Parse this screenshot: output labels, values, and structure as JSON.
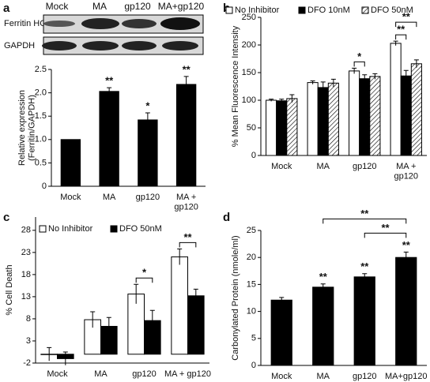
{
  "panels": [
    "a",
    "b",
    "c",
    "d"
  ],
  "blot": {
    "lanes": [
      "Mock",
      "MA",
      "gp120",
      "MA+gp120"
    ],
    "rows": [
      "Ferritin HC",
      "GAPDH"
    ]
  },
  "chart_data": [
    {
      "type": "bar",
      "ylabel": "Relative expression\n(Ferritin/GAPDH)",
      "categories": [
        "Mock",
        "MA",
        "gp120",
        "MA +\ngp120"
      ],
      "series": [
        {
          "color": "#000000",
          "values": [
            1.0,
            2.03,
            1.42,
            2.18
          ],
          "errors": [
            0,
            0.08,
            0.15,
            0.17
          ],
          "significance": [
            null,
            "**",
            "*",
            "**"
          ]
        }
      ],
      "ylim": [
        0,
        2.5
      ],
      "yticks": [
        0,
        0.5,
        {
          "value": 1,
          "label": "1.0"
        },
        1.5,
        {
          "value": 2,
          "label": "2.0"
        },
        2.5
      ]
    },
    {
      "type": "bar",
      "ylabel": "% Mean Fluorescence Intensity",
      "categories": [
        "Mock",
        "MA",
        "gp120",
        "MA +\ngp120"
      ],
      "series": [
        {
          "name": "No Inhibitor",
          "color": "#ffffff",
          "values": [
            100,
            132,
            153,
            203
          ],
          "errors": [
            2,
            3,
            5,
            4
          ]
        },
        {
          "name": "DFO 10nM",
          "color": "#000000",
          "values": [
            99,
            123,
            139,
            144
          ],
          "errors": [
            3,
            10,
            7,
            10
          ]
        },
        {
          "name": "DFO 50nM",
          "color": "#ffffff",
          "hatch": true,
          "values": [
            103,
            131,
            143,
            166
          ],
          "errors": [
            7,
            7,
            5,
            7
          ]
        }
      ],
      "comparisons": [
        {
          "label": "*",
          "category": 2,
          "series": [
            0,
            1
          ]
        },
        {
          "label": "**",
          "category": 3,
          "series": [
            0,
            1
          ]
        },
        {
          "label": "**",
          "category": 3,
          "series": [
            0,
            2
          ]
        }
      ],
      "ylim": [
        0,
        250
      ],
      "yticks": [
        0,
        50,
        100,
        150,
        200,
        250
      ]
    },
    {
      "type": "bar",
      "ylabel": "% Cell Death",
      "categories": [
        "Mock",
        "MA",
        "gp120",
        "MA + gp120"
      ],
      "series": [
        {
          "name": "No Inhibitor",
          "color": "#ffffff",
          "values": [
            0,
            7.8,
            13.6,
            22.0
          ],
          "errors": [
            1.5,
            1.8,
            2.2,
            1.8
          ]
        },
        {
          "name": "DFO 50nM",
          "color": "#000000",
          "values": [
            -1.0,
            6.3,
            7.6,
            13.2
          ],
          "errors": [
            1.5,
            2.0,
            2.3,
            1.5
          ]
        }
      ],
      "comparisons": [
        {
          "label": "*",
          "category": 2,
          "series": [
            0,
            1
          ]
        },
        {
          "label": "**",
          "category": 3,
          "series": [
            0,
            1
          ]
        }
      ],
      "ylim": [
        -2,
        31
      ],
      "yticks": [
        -2,
        3,
        8,
        13,
        18,
        23,
        28
      ]
    },
    {
      "type": "bar",
      "ylabel": "Carbonylated Protein (nmole/ml)",
      "categories": [
        "Mock",
        "MA",
        "gp120",
        "MA+gp120"
      ],
      "series": [
        {
          "color": "#000000",
          "values": [
            12.1,
            14.5,
            16.4,
            20.0
          ],
          "errors": [
            0.5,
            0.6,
            0.6,
            1.0
          ],
          "significance": [
            null,
            "**",
            "**",
            "**"
          ]
        }
      ],
      "comparisons": [
        {
          "label": "**",
          "categories": [
            2,
            3
          ]
        },
        {
          "label": "**",
          "categories": [
            1,
            3
          ]
        }
      ],
      "ylim": [
        0,
        25
      ],
      "yticks": [
        0,
        5,
        10,
        15,
        20,
        25
      ]
    }
  ]
}
